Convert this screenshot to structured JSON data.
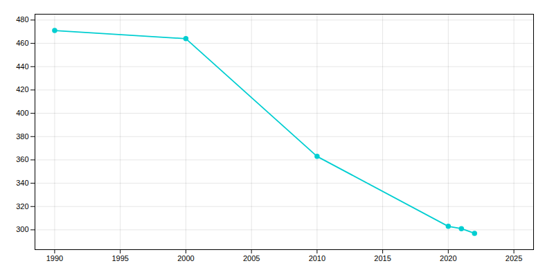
{
  "chart_data": {
    "type": "line",
    "x": [
      1990,
      2000,
      2010,
      2020,
      2021,
      2022
    ],
    "values": [
      471,
      464,
      363,
      303,
      301,
      297
    ],
    "color": "#00CED1",
    "marker": "circle",
    "xlim": [
      1988.5,
      2026.5
    ],
    "ylim": [
      283,
      485
    ],
    "xticks": [
      1990,
      1995,
      2000,
      2005,
      2010,
      2015,
      2020,
      2025
    ],
    "yticks": [
      300,
      320,
      340,
      360,
      380,
      400,
      420,
      440,
      460,
      480
    ],
    "grid": true
  }
}
